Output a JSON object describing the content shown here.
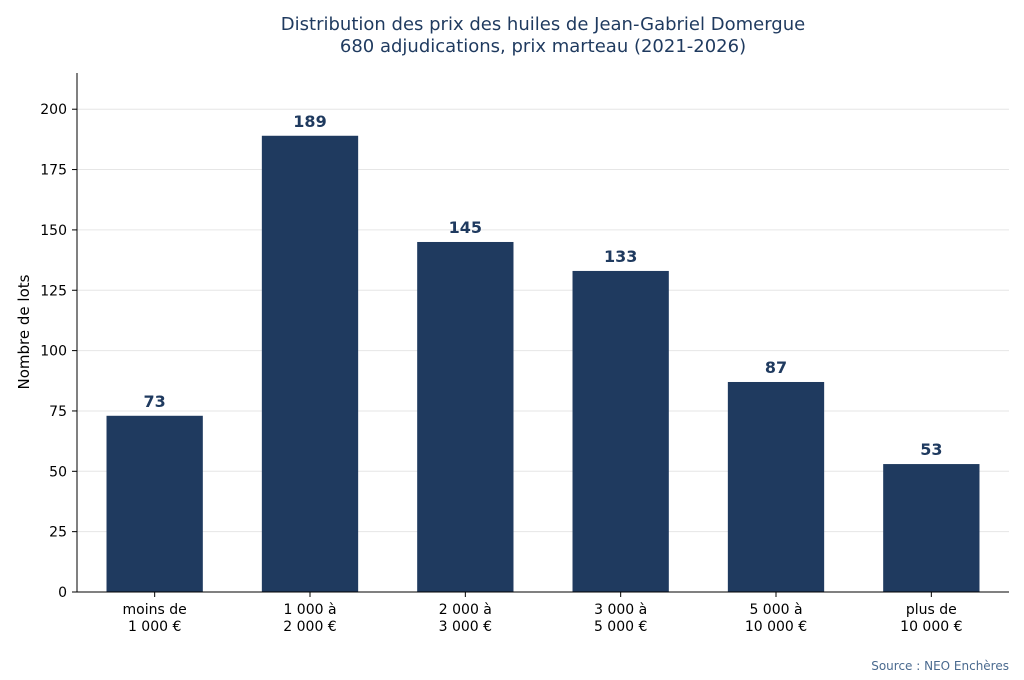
{
  "chart_data": {
    "type": "bar",
    "title": "Distribution des prix des huiles de Jean-Gabriel Domergue",
    "subtitle": "680 adjudications, prix marteau (2021-2026)",
    "ylabel": "Nombre de lots",
    "xlabel": "",
    "categories": [
      [
        "moins de",
        "1 000 €"
      ],
      [
        "1 000 à",
        "2 000 €"
      ],
      [
        "2 000 à",
        "3 000 €"
      ],
      [
        "3 000 à",
        "5 000 €"
      ],
      [
        "5 000 à",
        "10 000 €"
      ],
      [
        "plus de",
        "10 000 €"
      ]
    ],
    "values": [
      73,
      189,
      145,
      133,
      87,
      53
    ],
    "ylim": [
      0,
      215
    ],
    "yticks": [
      0,
      25,
      50,
      75,
      100,
      125,
      150,
      175,
      200
    ],
    "grid": true,
    "bar_color": "#1f3a5f",
    "grid_color": "#e6e6e6",
    "label_color": "#1f3a5f",
    "source": "Source : NEO Enchères"
  }
}
